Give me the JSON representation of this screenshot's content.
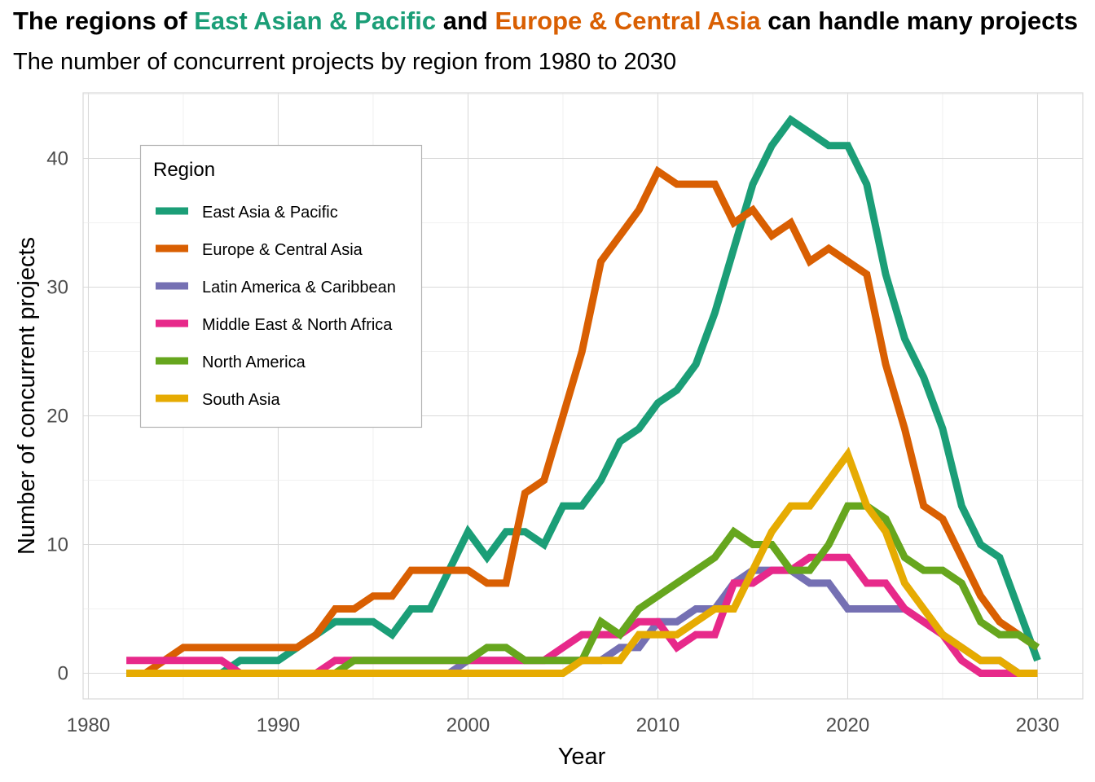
{
  "title": {
    "prefix": "The regions of ",
    "highlight_1": "East Asian & Pacific",
    "middle": " and ",
    "highlight_2": "Europe & Central Asia",
    "suffix": " can handle many projects",
    "highlight_1_color": "#1b9e77",
    "highlight_2_color": "#d95f02"
  },
  "subtitle": "The number of concurrent projects by region from 1980 to 2030",
  "chart_data": {
    "type": "line",
    "xlabel": "Year",
    "ylabel": "Number of concurrent projects",
    "xlim": [
      1980,
      2030
    ],
    "ylim": [
      0,
      43
    ],
    "x_ticks": [
      1980,
      1990,
      2000,
      2010,
      2020,
      2030
    ],
    "y_ticks": [
      0,
      10,
      20,
      30,
      40
    ],
    "grid": true,
    "legend": {
      "title": "Region",
      "position": "top-left"
    },
    "x": [
      1982,
      1983,
      1984,
      1985,
      1986,
      1987,
      1988,
      1989,
      1990,
      1991,
      1992,
      1993,
      1994,
      1995,
      1996,
      1997,
      1998,
      1999,
      2000,
      2001,
      2002,
      2003,
      2004,
      2005,
      2006,
      2007,
      2008,
      2009,
      2010,
      2011,
      2012,
      2013,
      2014,
      2015,
      2016,
      2017,
      2018,
      2019,
      2020,
      2021,
      2022,
      2023,
      2024,
      2025,
      2026,
      2027,
      2028,
      2029,
      2030
    ],
    "series": [
      {
        "name": "East Asia & Pacific",
        "color": "#1b9e77",
        "values": [
          0,
          0,
          0,
          0,
          0,
          0,
          1,
          1,
          1,
          2,
          3,
          4,
          4,
          4,
          3,
          5,
          5,
          8,
          11,
          9,
          11,
          11,
          10,
          13,
          13,
          15,
          18,
          19,
          21,
          22,
          24,
          28,
          33,
          38,
          41,
          43,
          42,
          41,
          41,
          38,
          31,
          26,
          23,
          19,
          13,
          10,
          9,
          5,
          1
        ]
      },
      {
        "name": "Europe & Central Asia",
        "color": "#d95f02",
        "values": [
          0,
          0,
          1,
          2,
          2,
          2,
          2,
          2,
          2,
          2,
          3,
          5,
          5,
          6,
          6,
          8,
          8,
          8,
          8,
          7,
          7,
          14,
          15,
          20,
          25,
          32,
          34,
          36,
          39,
          38,
          38,
          38,
          35,
          36,
          34,
          35,
          32,
          33,
          32,
          31,
          24,
          19,
          13,
          12,
          9,
          6,
          4,
          3,
          2
        ]
      },
      {
        "name": "Latin America & Caribbean",
        "color": "#7570b3",
        "values": [
          0,
          0,
          0,
          0,
          0,
          0,
          0,
          0,
          0,
          0,
          0,
          0,
          0,
          0,
          0,
          0,
          0,
          0,
          1,
          1,
          1,
          1,
          1,
          1,
          1,
          1,
          2,
          2,
          4,
          4,
          5,
          5,
          7,
          8,
          8,
          8,
          7,
          7,
          5,
          5,
          5,
          5,
          4,
          3,
          2,
          1,
          1,
          0,
          0
        ]
      },
      {
        "name": "Middle East & North Africa",
        "color": "#e7298a",
        "values": [
          1,
          1,
          1,
          1,
          1,
          1,
          0,
          0,
          0,
          0,
          0,
          1,
          1,
          1,
          1,
          1,
          1,
          1,
          1,
          1,
          1,
          1,
          1,
          2,
          3,
          3,
          3,
          4,
          4,
          2,
          3,
          3,
          7,
          7,
          8,
          8,
          9,
          9,
          9,
          7,
          7,
          5,
          4,
          3,
          1,
          0,
          0,
          0,
          0
        ]
      },
      {
        "name": "North America",
        "color": "#66a61e",
        "values": [
          0,
          0,
          0,
          0,
          0,
          0,
          0,
          0,
          0,
          0,
          0,
          0,
          1,
          1,
          1,
          1,
          1,
          1,
          1,
          2,
          2,
          1,
          1,
          1,
          1,
          4,
          3,
          5,
          6,
          7,
          8,
          9,
          11,
          10,
          10,
          8,
          8,
          10,
          13,
          13,
          12,
          9,
          8,
          8,
          7,
          4,
          3,
          3,
          2
        ]
      },
      {
        "name": "South Asia",
        "color": "#e6ab02",
        "values": [
          0,
          0,
          0,
          0,
          0,
          0,
          0,
          0,
          0,
          0,
          0,
          0,
          0,
          0,
          0,
          0,
          0,
          0,
          0,
          0,
          0,
          0,
          0,
          0,
          1,
          1,
          1,
          3,
          3,
          3,
          4,
          5,
          5,
          8,
          11,
          13,
          13,
          15,
          17,
          13,
          11,
          7,
          5,
          3,
          2,
          1,
          1,
          0,
          0
        ]
      }
    ]
  }
}
